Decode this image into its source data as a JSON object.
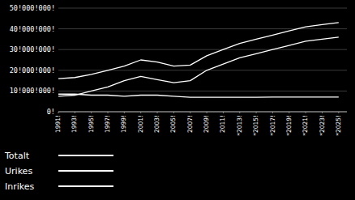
{
  "chart_data": {
    "type": "line",
    "x": [
      1991,
      1993,
      1995,
      1997,
      1999,
      2001,
      2003,
      2005,
      2007,
      2009,
      2011,
      2013,
      2015,
      2017,
      2019,
      2021,
      2023,
      2025
    ],
    "series": [
      {
        "name": "Totalt",
        "color": "#ffffff",
        "values": [
          16000000,
          16500000,
          18000000,
          20000000,
          22000000,
          25000000,
          24000000,
          22000000,
          22500000,
          27000000,
          30000000,
          33000000,
          35000000,
          37000000,
          39000000,
          41000000,
          42000000,
          43000000
        ]
      },
      {
        "name": "Urikes",
        "color": "#ffffff",
        "values": [
          7500000,
          8000000,
          10000000,
          12000000,
          15000000,
          17000000,
          15500000,
          14000000,
          15000000,
          20000000,
          23000000,
          26000000,
          28000000,
          30000000,
          32000000,
          34000000,
          35000000,
          36000000
        ]
      },
      {
        "name": "Inrikes",
        "color": "#ffffff",
        "values": [
          8500000,
          8500000,
          8000000,
          8000000,
          7500000,
          8000000,
          8000000,
          7500000,
          7000000,
          7000000,
          7000000,
          7000000,
          7000000,
          7100000,
          7100000,
          7100000,
          7100000,
          7100000
        ]
      }
    ],
    "xlim": [
      1991,
      2026
    ],
    "xticks": [
      {
        "value": 1991,
        "label": "1991!"
      },
      {
        "value": 1993,
        "label": "1993!"
      },
      {
        "value": 1995,
        "label": "1995!"
      },
      {
        "value": 1997,
        "label": "1997!"
      },
      {
        "value": 1999,
        "label": "1999!"
      },
      {
        "value": 2001,
        "label": "2001!"
      },
      {
        "value": 2003,
        "label": "2003!"
      },
      {
        "value": 2005,
        "label": "2005!"
      },
      {
        "value": 2007,
        "label": "2007!"
      },
      {
        "value": 2009,
        "label": "2009!"
      },
      {
        "value": 2011,
        "label": "2011!"
      },
      {
        "value": 2013,
        "label": "*2013!"
      },
      {
        "value": 2015,
        "label": "*2015!"
      },
      {
        "value": 2017,
        "label": "*2017!"
      },
      {
        "value": 2019,
        "label": "*2019!"
      },
      {
        "value": 2021,
        "label": "*2021!"
      },
      {
        "value": 2023,
        "label": "*2023!"
      },
      {
        "value": 2025,
        "label": "*2025!"
      }
    ],
    "ylim": [
      0,
      50000000
    ],
    "yticks": [
      {
        "value": 0,
        "label": "0!"
      },
      {
        "value": 10000000,
        "label": "10!000!000!"
      },
      {
        "value": 20000000,
        "label": "20!000!000!"
      },
      {
        "value": 30000000,
        "label": "30!000!000!"
      },
      {
        "value": 40000000,
        "label": "40!000!000!"
      },
      {
        "value": 50000000,
        "label": "50!000!000!"
      }
    ],
    "grid": true,
    "legend": "bottom"
  }
}
